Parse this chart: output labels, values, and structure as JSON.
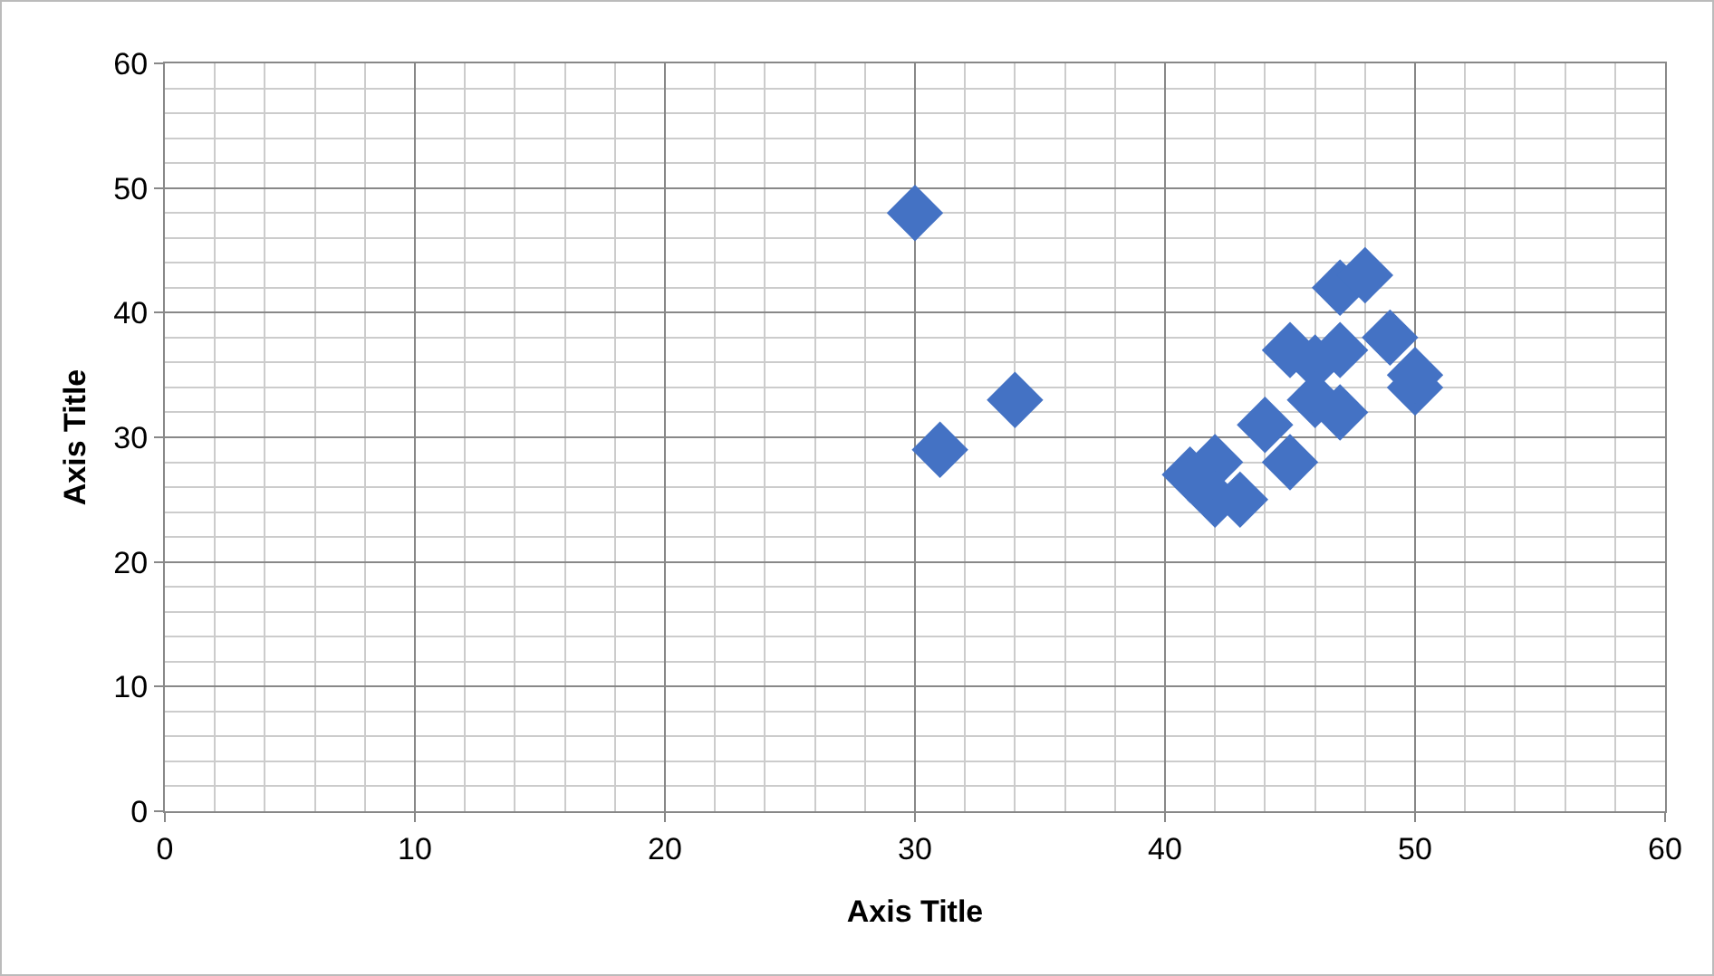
{
  "chart_data": {
    "type": "scatter",
    "xlabel": "Axis Title",
    "ylabel": "Axis Title",
    "x": [
      30,
      31,
      34,
      41,
      42,
      42,
      43,
      44,
      45,
      45,
      46,
      46,
      47,
      47,
      47,
      48,
      49,
      50,
      50
    ],
    "series": [
      {
        "color": "#4472c4",
        "values": [
          48,
          29,
          33,
          27,
          28,
          25,
          25,
          31,
          28,
          37,
          36,
          33,
          42,
          37,
          32,
          43,
          38,
          34,
          35
        ]
      }
    ],
    "xlim": [
      0,
      60
    ],
    "xticks": [
      0,
      10,
      20,
      30,
      40,
      50,
      60
    ],
    "ylim": [
      0,
      60
    ],
    "yticks": [
      0,
      10,
      20,
      30,
      40,
      50,
      60
    ],
    "grid": true,
    "marker": "diamond",
    "legend": false
  }
}
